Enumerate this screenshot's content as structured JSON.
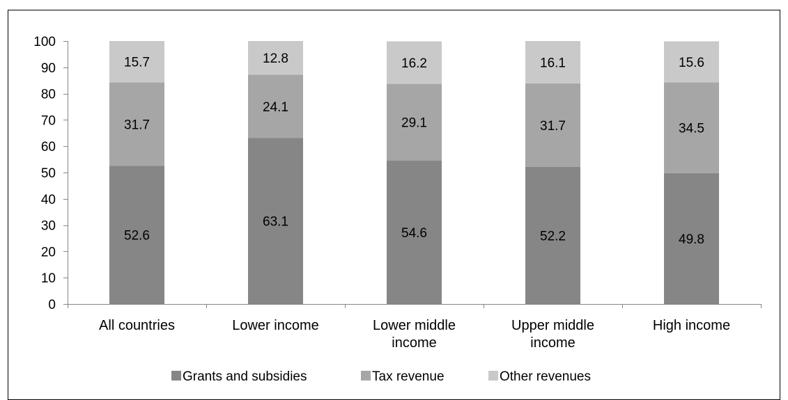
{
  "chart_data": {
    "type": "bar",
    "stacked": true,
    "categories": [
      "All countries",
      "Lower income",
      "Lower middle income",
      "Upper middle income",
      "High income"
    ],
    "category_lines": [
      [
        "All countries"
      ],
      [
        "Lower income"
      ],
      [
        "Lower middle",
        "income"
      ],
      [
        "Upper middle",
        "income"
      ],
      [
        "High income"
      ]
    ],
    "series": [
      {
        "name": "Grants and subsidies",
        "values": [
          52.6,
          63.1,
          54.6,
          52.2,
          49.8
        ],
        "color": "#868686"
      },
      {
        "name": "Tax revenue",
        "values": [
          31.7,
          24.1,
          29.1,
          31.7,
          34.5
        ],
        "color": "#a6a6a6"
      },
      {
        "name": "Other revenues",
        "values": [
          15.7,
          12.8,
          16.2,
          16.1,
          15.6
        ],
        "color": "#c9c9c9"
      }
    ],
    "title": "",
    "xlabel": "",
    "ylabel": "",
    "ylim": [
      0,
      100
    ],
    "yticks": [
      0,
      10,
      20,
      30,
      40,
      50,
      60,
      70,
      80,
      90,
      100
    ],
    "grid": false,
    "legend_position": "bottom",
    "axis_color": "#868686",
    "border_color": "#000000"
  }
}
